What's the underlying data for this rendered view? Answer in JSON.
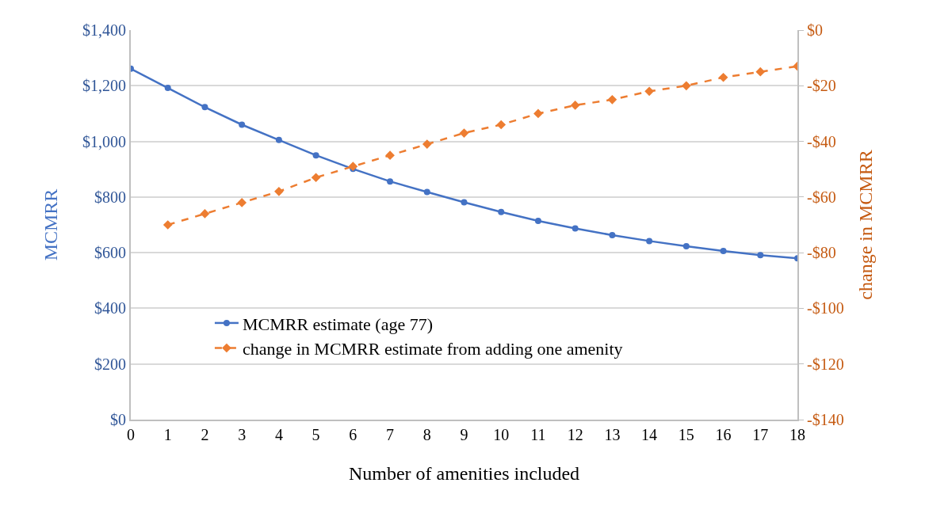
{
  "chart_data": {
    "type": "line",
    "xlabel": "Number of amenities included",
    "ylabel": "MCMRR",
    "y2label": "change in MCMRR",
    "x": [
      0,
      1,
      2,
      3,
      4,
      5,
      6,
      7,
      8,
      9,
      10,
      11,
      12,
      13,
      14,
      15,
      16,
      17,
      18
    ],
    "xlim": [
      0,
      18
    ],
    "xticks": [
      0,
      1,
      2,
      3,
      4,
      5,
      6,
      7,
      8,
      9,
      10,
      11,
      12,
      13,
      14,
      15,
      16,
      17,
      18
    ],
    "ylim": [
      0,
      1400
    ],
    "yticks": [
      {
        "value": 0,
        "label": "$0"
      },
      {
        "value": 200,
        "label": "$200"
      },
      {
        "value": 400,
        "label": "$400"
      },
      {
        "value": 600,
        "label": "$600"
      },
      {
        "value": 800,
        "label": "$800"
      },
      {
        "value": 1000,
        "label": "$1,000"
      },
      {
        "value": 1200,
        "label": "$1,200"
      },
      {
        "value": 1400,
        "label": "$1,400"
      }
    ],
    "y2lim": [
      -140,
      0
    ],
    "y2ticks": [
      {
        "value": -140,
        "label": "-$140"
      },
      {
        "value": -120,
        "label": "-$120"
      },
      {
        "value": -100,
        "label": "-$100"
      },
      {
        "value": -80,
        "label": "-$80"
      },
      {
        "value": -60,
        "label": "-$60"
      },
      {
        "value": -40,
        "label": "-$40"
      },
      {
        "value": -20,
        "label": "-$20"
      },
      {
        "value": 0,
        "label": "$0"
      }
    ],
    "grid": "y",
    "legend": "bottom",
    "series": [
      {
        "name": "MCMRR estimate (age 77)",
        "color": "#4472c4",
        "marker": "circle",
        "line_style": "solid",
        "values": [
          1261,
          1192,
          1123,
          1060,
          1005,
          950,
          901,
          856,
          818,
          781,
          746,
          714,
          687,
          663,
          642,
          623,
          606,
          591,
          580
        ]
      },
      {
        "name": "change in MCMRR estimate from adding one amenity",
        "color": "#ed7d31",
        "marker": "diamond",
        "line_style": "dashed",
        "axis": "y2",
        "values": [
          null,
          -70,
          -66,
          -62,
          -58,
          -53,
          -49,
          -45,
          -41,
          -37,
          -34,
          -30,
          -27,
          -25,
          -22,
          -20,
          -17,
          -15,
          -13
        ]
      }
    ]
  }
}
